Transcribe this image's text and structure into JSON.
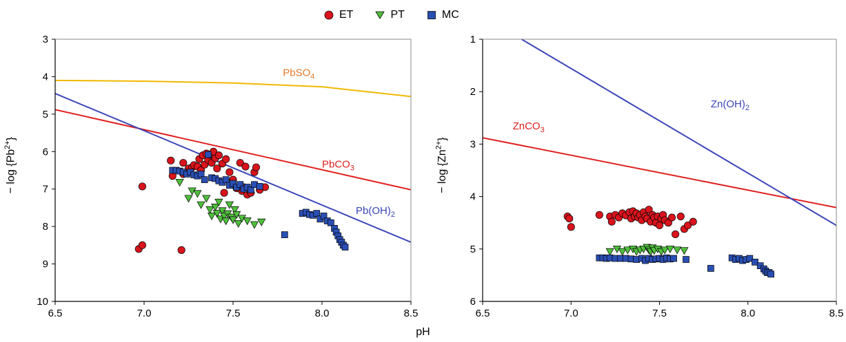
{
  "legend": [
    {
      "label": "ET",
      "marker": "circle",
      "color": "#d9141c"
    },
    {
      "label": "PT",
      "marker": "triangle-down",
      "color": "#4fbf3c"
    },
    {
      "label": "MC",
      "marker": "square",
      "color": "#2a4fb4"
    }
  ],
  "xlabel": "pH",
  "colors": {
    "ET": "#d9141c",
    "PT": "#4fbf3c",
    "MC": "#2a4fb4",
    "PbSO4": "#f0b800",
    "carbonate": "#e02020",
    "hydroxide": "#3a45b8",
    "PbSO4_label": "#e67a2a"
  },
  "chart_data": [
    {
      "type": "scatter",
      "ylabel": "− log {Pb2+}",
      "xlim": [
        6.5,
        8.5
      ],
      "ylim": [
        3,
        10
      ],
      "y_inverted": true,
      "xticks": [
        "6.5",
        "7.0",
        "7.5",
        "8.0",
        "8.5"
      ],
      "yticks": [
        "3",
        "4",
        "5",
        "6",
        "7",
        "8",
        "9",
        "10"
      ],
      "lines": [
        {
          "name": "PbSO4",
          "x": [
            6.5,
            7.0,
            7.5,
            8.0,
            8.5
          ],
          "y": [
            4.1,
            4.12,
            4.17,
            4.27,
            4.53
          ]
        },
        {
          "name": "PbCO3",
          "x": [
            6.5,
            8.5
          ],
          "y": [
            4.88,
            7.02
          ]
        },
        {
          "name": "Pb(OH)2",
          "x": [
            6.5,
            8.5
          ],
          "y": [
            4.45,
            8.42
          ]
        }
      ],
      "series": [
        {
          "name": "ET",
          "x": [
            6.97,
            6.99,
            6.99,
            7.15,
            7.16,
            7.21,
            7.22,
            7.22,
            7.25,
            7.27,
            7.28,
            7.3,
            7.31,
            7.32,
            7.33,
            7.34,
            7.35,
            7.36,
            7.37,
            7.38,
            7.39,
            7.4,
            7.41,
            7.42,
            7.44,
            7.45,
            7.46,
            7.48,
            7.5,
            7.52,
            7.54,
            7.55,
            7.56,
            7.57,
            7.58,
            7.6,
            7.62,
            7.63,
            7.65,
            7.68
          ],
          "y": [
            8.6,
            8.5,
            6.93,
            6.24,
            6.65,
            8.63,
            6.3,
            6.6,
            6.45,
            6.42,
            6.36,
            6.4,
            6.2,
            6.5,
            6.1,
            6.35,
            6.05,
            6.22,
            6.08,
            6.3,
            6.0,
            6.18,
            6.45,
            6.1,
            6.32,
            7.1,
            6.2,
            6.55,
            6.75,
            6.98,
            6.3,
            7.05,
            6.95,
            6.4,
            7.15,
            7.1,
            6.55,
            6.42,
            7.02,
            6.95
          ]
        },
        {
          "name": "PT",
          "x": [
            7.2,
            7.25,
            7.27,
            7.3,
            7.32,
            7.35,
            7.37,
            7.38,
            7.4,
            7.41,
            7.42,
            7.43,
            7.44,
            7.45,
            7.46,
            7.47,
            7.48,
            7.49,
            7.5,
            7.51,
            7.52,
            7.53,
            7.55,
            7.58,
            7.62,
            7.66
          ],
          "y": [
            6.82,
            7.25,
            7.05,
            7.12,
            7.42,
            7.25,
            7.55,
            7.72,
            7.48,
            7.65,
            7.35,
            7.8,
            7.58,
            7.72,
            7.85,
            7.66,
            7.42,
            7.75,
            7.82,
            7.55,
            7.68,
            7.92,
            7.78,
            7.85,
            7.95,
            7.88
          ]
        },
        {
          "name": "MC",
          "x": [
            7.16,
            7.18,
            7.2,
            7.22,
            7.24,
            7.26,
            7.28,
            7.3,
            7.32,
            7.34,
            7.36,
            7.38,
            7.4,
            7.42,
            7.44,
            7.46,
            7.48,
            7.5,
            7.52,
            7.54,
            7.56,
            7.58,
            7.6,
            7.62,
            7.65,
            7.79,
            7.89,
            7.91,
            7.93,
            7.95,
            7.97,
            7.99,
            8.01,
            8.03,
            8.05,
            8.07,
            8.08,
            8.09,
            8.1,
            8.11,
            8.12,
            8.13
          ],
          "y": [
            6.5,
            6.5,
            6.52,
            6.55,
            6.6,
            6.55,
            6.62,
            6.65,
            6.6,
            6.75,
            6.08,
            6.7,
            6.72,
            6.78,
            6.82,
            6.75,
            6.9,
            6.85,
            6.95,
            6.88,
            7.0,
            6.95,
            7.02,
            6.88,
            6.93,
            8.22,
            7.65,
            7.62,
            7.68,
            7.7,
            7.65,
            7.8,
            7.72,
            7.85,
            7.9,
            8.05,
            8.15,
            8.25,
            8.35,
            8.42,
            8.5,
            8.55
          ]
        }
      ],
      "annotations": [
        {
          "text": "PbSO",
          "sub": "4",
          "x": 7.78,
          "y": 3.98
        },
        {
          "text": "PbCO",
          "sub": "3",
          "x": 8.0,
          "y": 6.43
        },
        {
          "text": "Pb(OH)",
          "sub": "2",
          "x": 8.19,
          "y": 7.67
        }
      ]
    },
    {
      "type": "scatter",
      "ylabel": "− log {Zn2+}",
      "xlim": [
        6.5,
        8.5
      ],
      "ylim": [
        1,
        6
      ],
      "y_inverted": true,
      "xticks": [
        "6.5",
        "7.0",
        "7.5",
        "8.0",
        "8.5"
      ],
      "yticks": [
        "1",
        "2",
        "3",
        "4",
        "5",
        "6"
      ],
      "lines": [
        {
          "name": "ZnCO3",
          "x": [
            6.5,
            8.5
          ],
          "y": [
            2.88,
            4.21
          ]
        },
        {
          "name": "Zn(OH)2",
          "x": [
            6.72,
            8.5
          ],
          "y": [
            1.0,
            4.55
          ]
        }
      ],
      "series": [
        {
          "name": "ET",
          "x": [
            6.98,
            6.99,
            7.0,
            7.16,
            7.22,
            7.23,
            7.25,
            7.27,
            7.29,
            7.31,
            7.33,
            7.34,
            7.35,
            7.36,
            7.37,
            7.38,
            7.39,
            7.4,
            7.41,
            7.42,
            7.43,
            7.44,
            7.45,
            7.46,
            7.47,
            7.48,
            7.49,
            7.5,
            7.51,
            7.52,
            7.53,
            7.55,
            7.57,
            7.59,
            7.62,
            7.64,
            7.66,
            7.69
          ],
          "y": [
            4.38,
            4.42,
            4.58,
            4.35,
            4.38,
            4.48,
            4.35,
            4.4,
            4.32,
            4.36,
            4.3,
            4.42,
            4.28,
            4.38,
            4.32,
            4.4,
            4.35,
            4.45,
            4.3,
            4.38,
            4.42,
            4.25,
            4.48,
            4.35,
            4.4,
            4.5,
            4.38,
            4.55,
            4.42,
            4.35,
            4.45,
            4.5,
            4.4,
            4.72,
            4.38,
            4.62,
            4.55,
            4.48
          ]
        },
        {
          "name": "PT",
          "x": [
            7.22,
            7.26,
            7.29,
            7.32,
            7.35,
            7.37,
            7.39,
            7.41,
            7.43,
            7.44,
            7.45,
            7.46,
            7.47,
            7.49,
            7.51,
            7.53,
            7.56,
            7.6,
            7.64
          ],
          "y": [
            5.05,
            5.0,
            5.05,
            5.02,
            5.0,
            5.05,
            5.02,
            5.0,
            4.97,
            5.02,
            5.05,
            4.98,
            5.03,
            5.0,
            5.05,
            5.02,
            5.0,
            5.02,
            5.03
          ]
        },
        {
          "name": "MC",
          "x": [
            7.16,
            7.18,
            7.2,
            7.22,
            7.25,
            7.28,
            7.31,
            7.34,
            7.37,
            7.4,
            7.42,
            7.44,
            7.46,
            7.48,
            7.5,
            7.52,
            7.54,
            7.56,
            7.58,
            7.65,
            7.79,
            7.91,
            7.93,
            7.95,
            7.97,
            7.99,
            8.01,
            8.04,
            8.07,
            8.09,
            8.1,
            8.11,
            8.12,
            8.13
          ],
          "y": [
            5.17,
            5.17,
            5.18,
            5.17,
            5.18,
            5.18,
            5.18,
            5.19,
            5.2,
            5.18,
            5.22,
            5.18,
            5.2,
            5.19,
            5.18,
            5.2,
            5.17,
            5.19,
            5.18,
            5.2,
            5.37,
            5.17,
            5.2,
            5.18,
            5.22,
            5.2,
            5.18,
            5.25,
            5.32,
            5.38,
            5.42,
            5.45,
            5.45,
            5.48
          ]
        }
      ],
      "annotations": [
        {
          "text": "ZnCO",
          "sub": "3",
          "x": 6.67,
          "y": 2.72
        },
        {
          "text": "Zn(OH)",
          "sub": "2",
          "x": 7.79,
          "y": 2.3
        }
      ]
    }
  ]
}
